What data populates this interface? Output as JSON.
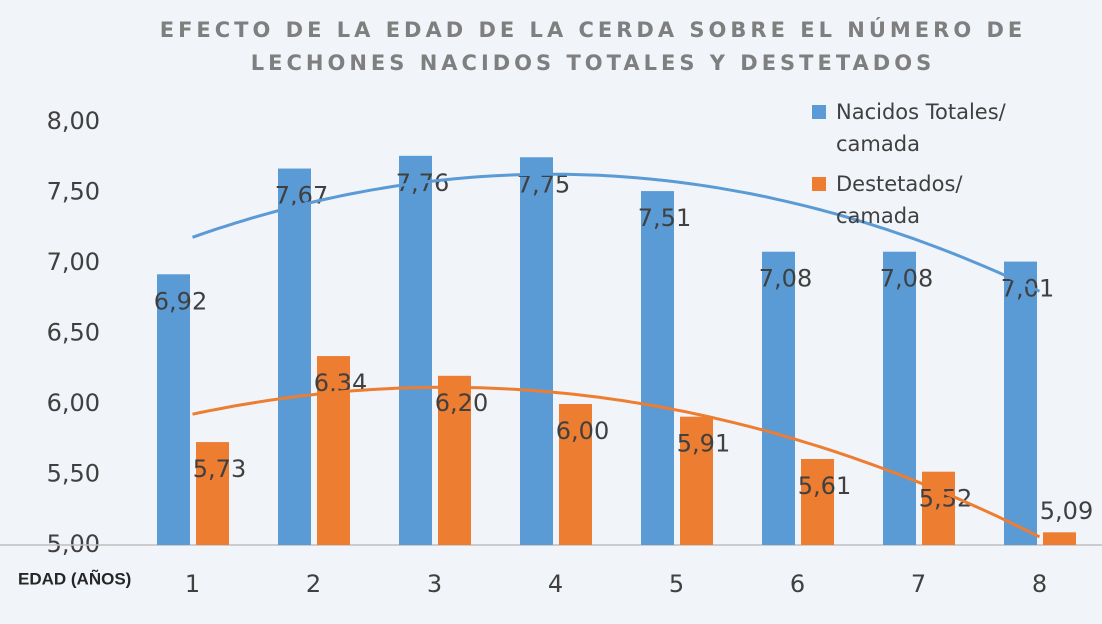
{
  "chart_data": {
    "type": "bar",
    "title": "EFECTO DE LA EDAD DE LA CERDA SOBRE EL NÚMERO DE LECHONES NACIDOS TOTALES Y DESTETADOS",
    "x_label": "EDAD (AÑOS)",
    "categories": [
      "1",
      "2",
      "3",
      "4",
      "5",
      "6",
      "7",
      "8"
    ],
    "series": [
      {
        "name": "Nacidos Totales/ camada",
        "color": "#5b9bd5",
        "values": [
          6.92,
          7.67,
          7.76,
          7.75,
          7.51,
          7.08,
          7.08,
          7.01
        ],
        "value_labels": [
          "6,92",
          "7,67",
          "7,76",
          "7,75",
          "7,51",
          "7,08",
          "7,08",
          "7,01"
        ]
      },
      {
        "name": "Destetados/ camada",
        "color": "#ed7d31",
        "values": [
          5.73,
          6.34,
          6.2,
          6.0,
          5.91,
          5.61,
          5.52,
          5.09
        ],
        "value_labels": [
          "5,73",
          "6,34",
          "6,20",
          "6,00",
          "5,91",
          "5,61",
          "5,52",
          "5,09"
        ]
      }
    ],
    "ylim": [
      5,
      8
    ],
    "yticks": [
      {
        "value": 5,
        "label": "5,00"
      },
      {
        "value": 5.5,
        "label": "5,50"
      },
      {
        "value": 6,
        "label": "6,00"
      },
      {
        "value": 6.5,
        "label": "6,50"
      },
      {
        "value": 7,
        "label": "7,00"
      },
      {
        "value": 7.5,
        "label": "7,50"
      },
      {
        "value": 8,
        "label": "8,00"
      }
    ],
    "grid": false,
    "legend": "top-right",
    "trendline": {
      "type": "polynomial",
      "order": 2
    }
  }
}
